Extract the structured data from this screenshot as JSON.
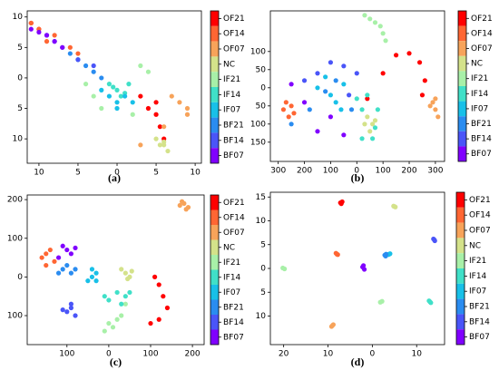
{
  "chart_data": [
    {
      "type": "scatter",
      "caption": "(a)",
      "xlim": [
        -11.5,
        10.8
      ],
      "ylim": [
        -14,
        11
      ],
      "xticks": [
        {
          "value": -10,
          "label": "10"
        },
        {
          "value": -5,
          "label": "5"
        },
        0,
        5,
        10
      ],
      "yticks": [
        10,
        5,
        0,
        {
          "value": -5,
          "label": "5"
        },
        {
          "value": -10,
          "label": "10"
        }
      ],
      "series": [
        {
          "name": "OF21",
          "color": "#ff0000",
          "x": [
            3,
            4,
            5,
            5.5,
            6,
            5,
            -11,
            -10
          ],
          "values": [
            -3,
            -5,
            -6,
            -8,
            -10,
            -4,
            9,
            8
          ]
        },
        {
          "name": "OF14",
          "color": "#ff6633",
          "x": [
            -11,
            -10,
            -8,
            -6,
            -5,
            -9
          ],
          "values": [
            9,
            8,
            7,
            5,
            4,
            6
          ]
        },
        {
          "name": "OF07",
          "color": "#f7a35a",
          "x": [
            7,
            8,
            9,
            9,
            6,
            3
          ],
          "values": [
            -3,
            -4,
            -5,
            -6,
            -8,
            -11
          ]
        },
        {
          "name": "NC",
          "color": "#d4e28a",
          "x": [
            5,
            6,
            6.5,
            5.5,
            6
          ],
          "values": [
            -10,
            -11,
            -12,
            -11,
            -10.5
          ]
        },
        {
          "name": "IF21",
          "color": "#a8f0a8",
          "x": [
            -4,
            -3,
            -2,
            2,
            3,
            4
          ],
          "values": [
            -1,
            -3,
            -5,
            -6,
            2,
            1
          ]
        },
        {
          "name": "IF14",
          "color": "#40e0c8",
          "x": [
            -1,
            0,
            1,
            0.5,
            -0.5,
            1.5
          ],
          "values": [
            -1,
            -2,
            -2.5,
            -3,
            -1.5,
            -1
          ]
        },
        {
          "name": "IF07",
          "color": "#18c0e8",
          "x": [
            -2,
            -1,
            0,
            1,
            2,
            0
          ],
          "values": [
            -2,
            -3,
            -4,
            -3,
            -4,
            -5
          ]
        },
        {
          "name": "BF21",
          "color": "#2a8cf0",
          "x": [
            -6,
            -5,
            -4,
            -3,
            -2
          ],
          "values": [
            4,
            3,
            2,
            1,
            0
          ]
        },
        {
          "name": "BF14",
          "color": "#4a55f8",
          "x": [
            -9,
            -8,
            -7,
            -5,
            -3
          ],
          "values": [
            7,
            6,
            5,
            3,
            2
          ]
        },
        {
          "name": "BF07",
          "color": "#8000ff",
          "x": [
            -11,
            -10,
            -9,
            -8,
            -7
          ],
          "values": [
            8,
            7.5,
            7,
            6,
            5
          ]
        }
      ]
    },
    {
      "type": "scatter",
      "caption": "(b)",
      "xlim": [
        -330,
        335
      ],
      "ylim": [
        -203,
        212
      ],
      "xticks": [
        {
          "value": -300,
          "label": "300"
        },
        {
          "value": -200,
          "label": "200"
        },
        {
          "value": -100,
          "label": "100"
        },
        0,
        100,
        200,
        300
      ],
      "yticks": [
        100,
        50,
        0,
        {
          "value": -50,
          "label": "50"
        },
        {
          "value": -100,
          "label": "100"
        },
        {
          "value": -150,
          "label": "150"
        }
      ],
      "series": [
        {
          "name": "OF21",
          "color": "#ff0000",
          "x": [
            40,
            100,
            150,
            200,
            240,
            260,
            250
          ],
          "values": [
            -30,
            40,
            90,
            95,
            70,
            20,
            -20
          ]
        },
        {
          "name": "OF14",
          "color": "#ff6633",
          "x": [
            -280,
            -260,
            -250,
            -270,
            -240
          ],
          "values": [
            -60,
            -80,
            -50,
            -40,
            -70
          ]
        },
        {
          "name": "OF07",
          "color": "#f7a35a",
          "x": [
            290,
            300,
            310,
            280,
            300
          ],
          "values": [
            -40,
            -60,
            -80,
            -50,
            -30
          ]
        },
        {
          "name": "NC",
          "color": "#d4e28a",
          "x": [
            40,
            60,
            50,
            30,
            70
          ],
          "values": [
            -80,
            -100,
            -120,
            -100,
            -90
          ]
        },
        {
          "name": "IF21",
          "color": "#a8f0a8",
          "x": [
            30,
            50,
            70,
            90,
            100,
            110
          ],
          "values": [
            200,
            190,
            180,
            170,
            150,
            130
          ]
        },
        {
          "name": "IF14",
          "color": "#40e0c8",
          "x": [
            0,
            20,
            40,
            80,
            70,
            20,
            60
          ],
          "values": [
            -30,
            -60,
            -20,
            -60,
            -110,
            -140,
            -140
          ]
        },
        {
          "name": "IF07",
          "color": "#18c0e8",
          "x": [
            -150,
            -100,
            -80,
            -50,
            -120,
            -60
          ],
          "values": [
            0,
            -20,
            -40,
            10,
            30,
            -60
          ]
        },
        {
          "name": "BF21",
          "color": "#2a8cf0",
          "x": [
            -250,
            -180,
            -120,
            -80,
            -20
          ],
          "values": [
            -100,
            -60,
            -10,
            20,
            -60
          ]
        },
        {
          "name": "BF14",
          "color": "#4a55f8",
          "x": [
            -200,
            -150,
            -100,
            -50,
            0,
            -30
          ],
          "values": [
            20,
            40,
            70,
            60,
            40,
            -20
          ]
        },
        {
          "name": "BF07",
          "color": "#8000ff",
          "x": [
            -250,
            -200,
            -150,
            -100,
            -50
          ],
          "values": [
            10,
            -40,
            -120,
            -80,
            -130
          ]
        }
      ]
    },
    {
      "type": "scatter",
      "caption": "(c)",
      "xlim": [
        -195,
        228
      ],
      "ylim": [
        -175,
        212
      ],
      "xticks": [
        {
          "value": -100,
          "label": "100"
        },
        0,
        100,
        200
      ],
      "yticks": [
        200,
        100,
        0,
        {
          "value": -100,
          "label": "100"
        }
      ],
      "series": [
        {
          "name": "OF21",
          "color": "#ff0000",
          "x": [
            110,
            120,
            130,
            140,
            120,
            100
          ],
          "values": [
            0,
            -20,
            -50,
            -80,
            -110,
            -120
          ]
        },
        {
          "name": "OF14",
          "color": "#ff6633",
          "x": [
            -150,
            -160,
            -140,
            -130,
            -150
          ],
          "values": [
            60,
            50,
            70,
            40,
            30
          ]
        },
        {
          "name": "OF07",
          "color": "#f7a35a",
          "x": [
            170,
            180,
            190,
            185,
            175
          ],
          "values": [
            185,
            190,
            180,
            175,
            195
          ]
        },
        {
          "name": "NC",
          "color": "#d4e28a",
          "x": [
            40,
            50,
            30,
            45,
            55
          ],
          "values": [
            10,
            0,
            20,
            -5,
            15
          ]
        },
        {
          "name": "IF21",
          "color": "#a8f0a8",
          "x": [
            0,
            10,
            20,
            -10,
            30,
            40
          ],
          "values": [
            -120,
            -130,
            -110,
            -140,
            -100,
            -70
          ]
        },
        {
          "name": "IF14",
          "color": "#40e0c8",
          "x": [
            -10,
            20,
            40,
            0,
            50,
            30
          ],
          "values": [
            -50,
            -40,
            -50,
            -60,
            -40,
            -70
          ]
        },
        {
          "name": "IF07",
          "color": "#18c0e8",
          "x": [
            -40,
            -30,
            -50,
            -30,
            -40
          ],
          "values": [
            0,
            10,
            -10,
            -10,
            20
          ]
        },
        {
          "name": "BF21",
          "color": "#2a8cf0",
          "x": [
            -110,
            -90,
            -100,
            -80,
            -120
          ],
          "values": [
            20,
            10,
            30,
            20,
            10
          ]
        },
        {
          "name": "BF14",
          "color": "#4a55f8",
          "x": [
            -90,
            -100,
            -80,
            -90,
            -110
          ],
          "values": [
            -80,
            -90,
            -100,
            -70,
            -85
          ]
        },
        {
          "name": "BF07",
          "color": "#8000ff",
          "x": [
            -110,
            -100,
            -90,
            -120,
            -80
          ],
          "values": [
            80,
            70,
            60,
            50,
            75
          ]
        }
      ]
    },
    {
      "type": "scatter",
      "caption": "(d)",
      "xlim": [
        -23,
        16.3
      ],
      "ylim": [
        -16,
        16
      ],
      "xticks": [
        {
          "value": -20,
          "label": "20"
        },
        {
          "value": -10,
          "label": "10"
        },
        0,
        10
      ],
      "yticks": [
        15,
        10,
        5,
        0,
        {
          "value": -5,
          "label": "5"
        },
        {
          "value": -10,
          "label": "10"
        }
      ],
      "series": [
        {
          "name": "OF21",
          "color": "#ff0000",
          "x": [
            -7.2,
            -6.8,
            -7
          ],
          "values": [
            13.8,
            14,
            13.6
          ]
        },
        {
          "name": "OF14",
          "color": "#ff6633",
          "x": [
            -8.2,
            -7.8,
            -8
          ],
          "values": [
            3.2,
            2.9,
            3
          ]
        },
        {
          "name": "OF07",
          "color": "#f7a35a",
          "x": [
            -9.2,
            -8.8,
            -9
          ],
          "values": [
            -12.2,
            -11.8,
            -12
          ]
        },
        {
          "name": "NC",
          "color": "#d4e28a",
          "x": [
            4.8,
            5.2,
            5
          ],
          "values": [
            13.1,
            12.9,
            13
          ]
        },
        {
          "name": "IF21",
          "color": "#a8f0a8",
          "x": [
            -20.2,
            -19.8,
            1.8,
            2.2
          ],
          "values": [
            0.1,
            -0.1,
            -7.1,
            -6.9
          ]
        },
        {
          "name": "IF14",
          "color": "#40e0c8",
          "x": [
            12.8,
            13.2,
            13
          ],
          "values": [
            -6.8,
            -7.2,
            -7
          ]
        },
        {
          "name": "IF07",
          "color": "#18c0e8",
          "x": [
            3.6,
            4,
            3.8
          ],
          "values": [
            2.9,
            3.1,
            3
          ]
        },
        {
          "name": "BF21",
          "color": "#2a8cf0",
          "x": [
            2.8,
            3.1,
            3
          ],
          "values": [
            2.8,
            3,
            2.6
          ]
        },
        {
          "name": "BF14",
          "color": "#4a55f8",
          "x": [
            13.8,
            14.1,
            14
          ],
          "values": [
            6.2,
            5.8,
            6
          ]
        },
        {
          "name": "BF07",
          "color": "#8000ff",
          "x": [
            -2.2,
            -1.8,
            -2
          ],
          "values": [
            0.3,
            -0.2,
            0.6
          ]
        }
      ]
    }
  ]
}
